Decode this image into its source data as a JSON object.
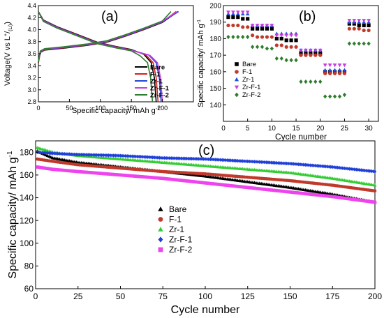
{
  "chart_data": [
    {
      "id": "a",
      "type": "line",
      "panel_label": "(a)",
      "xlabel_main": "Specific capacity/ mAh g",
      "xlabel_sup": "-1",
      "ylabel_pre": "Voltage(V vs L",
      "ylabel_sup1": "+",
      "ylabel_mid": "/",
      "ylabel_sub": "(Li)",
      "ylabel_post": ")",
      "xlim": [
        0,
        250
      ],
      "ylim": [
        2.8,
        4.4
      ],
      "xticks": [
        0,
        50,
        100,
        150,
        200
      ],
      "yticks": [
        2.8,
        3.0,
        3.2,
        3.4,
        3.6,
        3.8,
        4.0,
        4.2,
        4.4
      ],
      "ytick_labels": [
        "2.8",
        "3.0",
        "3.2",
        "3.4",
        "3.6",
        "3.8",
        "4.0",
        "4.2",
        "4.4"
      ],
      "legend_position": "bottom-right",
      "grid": false,
      "series": [
        {
          "name": "Bare",
          "color": "#000000",
          "charge_end": 225,
          "discharge_end": 190
        },
        {
          "name": "F-1",
          "color": "#d81e1e",
          "charge_end": 222,
          "discharge_end": 193
        },
        {
          "name": "Zr-1",
          "color": "#2046d8",
          "charge_end": 226,
          "discharge_end": 198
        },
        {
          "name": "Zr-F-1",
          "color": "#c83ce0",
          "charge_end": 224,
          "discharge_end": 200
        },
        {
          "name": "Zr-F-2",
          "color": "#2e7d2e",
          "charge_end": 214,
          "discharge_end": 184
        }
      ]
    },
    {
      "id": "b",
      "type": "scatter",
      "panel_label": "(b)",
      "xlabel": "Cycle number",
      "ylabel_main": "Specific capacity/ mAh g",
      "ylabel_sup": "-1",
      "xlim": [
        0,
        32
      ],
      "ylim": [
        130,
        200
      ],
      "xticks": [
        0,
        5,
        10,
        15,
        20,
        25,
        30
      ],
      "yticks": [
        140,
        150,
        160,
        170,
        180,
        190,
        200
      ],
      "legend_position": "center-left",
      "grid": false,
      "x": [
        1,
        2,
        3,
        4,
        5,
        6,
        7,
        8,
        9,
        10,
        11,
        12,
        13,
        14,
        15,
        16,
        17,
        18,
        19,
        20,
        21,
        22,
        23,
        24,
        25,
        26,
        27,
        28,
        29,
        30
      ],
      "series": [
        {
          "name": "Bare",
          "color": "#000000",
          "marker": "square",
          "values": [
            193,
            193,
            193,
            192,
            192,
            186,
            186,
            186,
            186,
            186,
            180,
            180,
            179,
            179,
            179,
            171,
            171,
            171,
            171,
            171,
            160,
            160,
            160,
            160,
            160,
            189,
            189,
            188,
            188,
            188
          ]
        },
        {
          "name": "F-1",
          "color": "#c0392b",
          "marker": "circle",
          "values": [
            188,
            188,
            188,
            187,
            187,
            182,
            181,
            181,
            181,
            181,
            176,
            176,
            175,
            175,
            175,
            170,
            170,
            170,
            170,
            170,
            159,
            159,
            159,
            159,
            159,
            186,
            186,
            186,
            185,
            185
          ]
        },
        {
          "name": "Zr-1",
          "color": "#1f4fd8",
          "marker": "triangle-up",
          "values": [
            195,
            195,
            195,
            195,
            195,
            188,
            188,
            188,
            188,
            188,
            183,
            183,
            183,
            183,
            183,
            173,
            173,
            173,
            173,
            173,
            161,
            161,
            161,
            161,
            161,
            190,
            190,
            190,
            190,
            190
          ]
        },
        {
          "name": "Zr-F-1",
          "color": "#c83ce0",
          "marker": "triangle-down",
          "values": [
            196,
            196,
            196,
            196,
            196,
            188,
            188,
            188,
            188,
            188,
            182,
            182,
            182,
            182,
            182,
            173,
            173,
            173,
            173,
            173,
            164,
            164,
            164,
            164,
            164,
            191,
            191,
            191,
            191,
            191
          ]
        },
        {
          "name": "Zr-F-2",
          "color": "#2e7d2e",
          "marker": "diamond",
          "values": [
            181,
            181,
            181,
            181,
            181,
            175,
            175,
            175,
            174,
            174,
            168,
            168,
            167,
            167,
            167,
            154,
            154,
            154,
            154,
            154,
            145,
            145,
            145,
            145,
            146,
            177,
            177,
            177,
            177,
            177
          ]
        }
      ]
    },
    {
      "id": "c",
      "type": "scatter",
      "panel_label": "(c)",
      "xlabel": "Cycle number",
      "ylabel_main": "Specific capacity/ mAh g",
      "ylabel_sup": "-1",
      "xlim": [
        0,
        200
      ],
      "ylim": [
        60,
        190
      ],
      "xticks": [
        0,
        25,
        50,
        75,
        100,
        125,
        150,
        175,
        200
      ],
      "yticks": [
        60,
        80,
        100,
        120,
        140,
        160,
        180
      ],
      "legend_position": "center",
      "grid": false,
      "series": [
        {
          "name": "Bare",
          "color": "#000000",
          "marker": "triangle-up",
          "points": [
            [
              1,
              181
            ],
            [
              10,
              175
            ],
            [
              25,
              171
            ],
            [
              50,
              167
            ],
            [
              75,
              163
            ],
            [
              100,
              159
            ],
            [
              125,
              154
            ],
            [
              150,
              149
            ],
            [
              175,
              143
            ],
            [
              200,
              136
            ]
          ]
        },
        {
          "name": "F-1",
          "color": "#c0392b",
          "marker": "circle",
          "points": [
            [
              1,
              174
            ],
            [
              10,
              172
            ],
            [
              25,
              169
            ],
            [
              50,
              166
            ],
            [
              75,
              163
            ],
            [
              100,
              161
            ],
            [
              125,
              158
            ],
            [
              150,
              155
            ],
            [
              175,
              151
            ],
            [
              200,
              146
            ]
          ]
        },
        {
          "name": "Zr-1",
          "color": "#33cc33",
          "marker": "triangle-up",
          "points": [
            [
              1,
              184
            ],
            [
              10,
              180
            ],
            [
              25,
              177
            ],
            [
              50,
              174
            ],
            [
              75,
              171
            ],
            [
              100,
              168
            ],
            [
              125,
              165
            ],
            [
              150,
              162
            ],
            [
              175,
              157
            ],
            [
              200,
              151
            ]
          ]
        },
        {
          "name": "Zr-F-1",
          "color": "#1f3fd8",
          "marker": "diamond",
          "points": [
            [
              1,
              180
            ],
            [
              10,
              179
            ],
            [
              25,
              178
            ],
            [
              50,
              177
            ],
            [
              75,
              175
            ],
            [
              100,
              174
            ],
            [
              125,
              172
            ],
            [
              150,
              170
            ],
            [
              175,
              167
            ],
            [
              200,
              163
            ]
          ]
        },
        {
          "name": "Zr-F-2",
          "color": "#ee44ee",
          "marker": "square",
          "points": [
            [
              1,
              167
            ],
            [
              10,
              165
            ],
            [
              25,
              163
            ],
            [
              50,
              160
            ],
            [
              75,
              157
            ],
            [
              100,
              153
            ],
            [
              125,
              149
            ],
            [
              150,
              145
            ],
            [
              175,
              141
            ],
            [
              200,
              136
            ]
          ]
        }
      ]
    }
  ]
}
